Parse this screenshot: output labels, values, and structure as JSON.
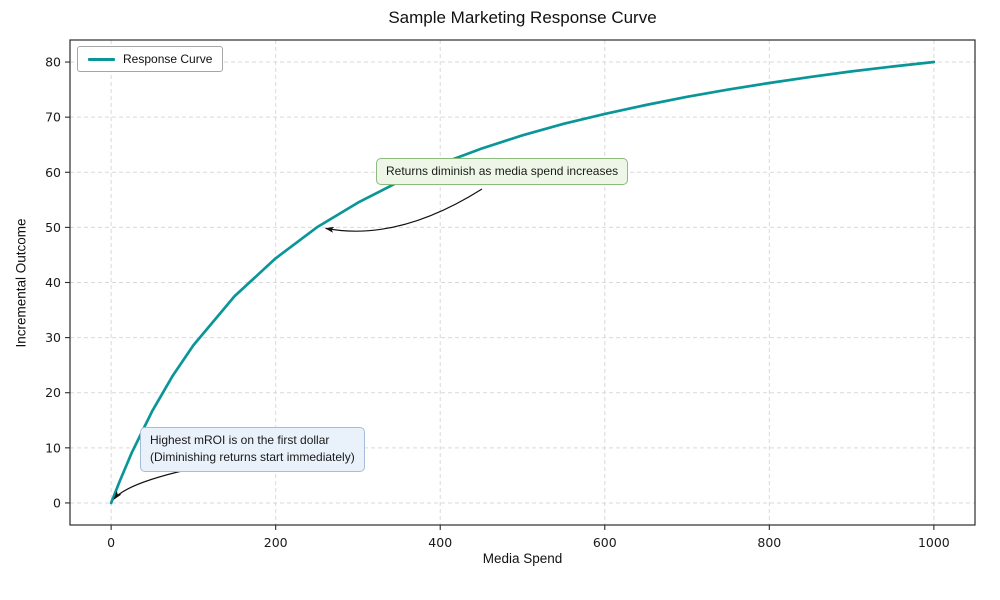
{
  "chart_data": {
    "type": "line",
    "title": "Sample Marketing Response Curve",
    "xlabel": "Media Spend",
    "ylabel": "Incremental Outcome",
    "xlim": [
      -50,
      1050
    ],
    "ylim": [
      -4,
      84
    ],
    "x_ticks": [
      0,
      200,
      400,
      600,
      800,
      1000
    ],
    "y_ticks": [
      0,
      10,
      20,
      30,
      40,
      50,
      60,
      70,
      80
    ],
    "grid": true,
    "grid_style": "dashed",
    "legend_position": "upper-left",
    "series": [
      {
        "name": "Response Curve",
        "color": "#0a9699",
        "x": [
          0,
          10,
          25,
          50,
          75,
          100,
          150,
          200,
          250,
          300,
          350,
          400,
          450,
          500,
          550,
          600,
          650,
          700,
          750,
          800,
          850,
          900,
          950,
          1000
        ],
        "y": [
          0,
          3.8,
          9.1,
          16.7,
          23.1,
          28.6,
          37.5,
          44.4,
          50.0,
          54.5,
          58.3,
          61.5,
          64.3,
          66.7,
          68.8,
          70.6,
          72.2,
          73.7,
          75.0,
          76.2,
          77.3,
          78.3,
          79.2,
          80.0
        ]
      }
    ],
    "annotations": [
      {
        "text": "Returns diminish as media spend increases",
        "xy": [
          250,
          50
        ],
        "box_color": "#eef7e7",
        "border_color": "#8cbb7e"
      },
      {
        "text": "Highest mROI is on the first dollar\n(Diminishing returns start immediately)",
        "xy": [
          0,
          0
        ],
        "box_color": "#e9f1fb",
        "border_color": "#a6bdd6"
      }
    ]
  }
}
